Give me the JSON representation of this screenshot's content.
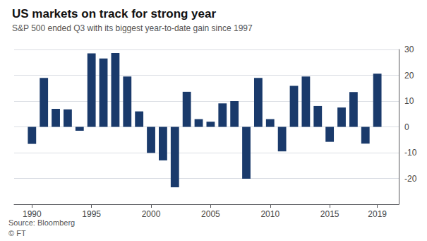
{
  "chart_data": {
    "type": "bar",
    "title": "US markets on track for strong year",
    "subtitle": "S&P 500 ended Q3 with its biggest year-to-date gain since 1997",
    "annotations": [
      "Source: Bloomberg",
      "© FT"
    ],
    "x": [
      1990,
      1991,
      1992,
      1993,
      1994,
      1995,
      1996,
      1997,
      1998,
      1999,
      2000,
      2001,
      2002,
      2003,
      2004,
      2005,
      2006,
      2007,
      2008,
      2009,
      2010,
      2011,
      2012,
      2013,
      2014,
      2015,
      2016,
      2017,
      2018,
      2019
    ],
    "values": [
      -6.6,
      19.0,
      7.0,
      6.8,
      -1.5,
      28.5,
      26.5,
      28.6,
      19.5,
      6.0,
      -10.1,
      -13.0,
      -23.4,
      13.6,
      3.0,
      2.0,
      9.1,
      10.0,
      -20.1,
      19.0,
      3.0,
      -9.5,
      15.9,
      19.5,
      8.1,
      -5.8,
      7.5,
      13.5,
      -6.5,
      20.6
    ],
    "color": "#1a3a6b",
    "xlim": [
      1988.5,
      2020.8
    ],
    "xticks": [
      1990,
      1995,
      2000,
      2005,
      2010,
      2015,
      2019
    ],
    "ylim": [
      -30,
      30
    ],
    "yticks": [
      -20,
      -10,
      0,
      10,
      20,
      30
    ],
    "grid": true
  }
}
